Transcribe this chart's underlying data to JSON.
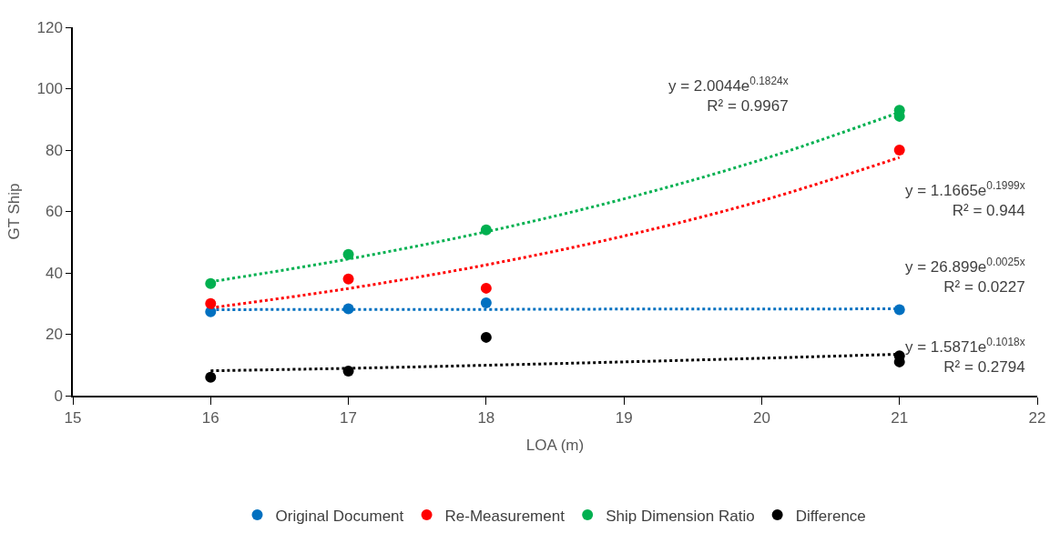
{
  "chart_data": {
    "type": "scatter",
    "xlabel": "LOA (m)",
    "ylabel": "GT Ship",
    "xlim": [
      15,
      22
    ],
    "xticks": [
      15,
      16,
      17,
      18,
      19,
      20,
      21,
      22
    ],
    "ylim": [
      0,
      120
    ],
    "yticks": [
      0,
      20,
      40,
      60,
      80,
      100,
      120
    ],
    "legend": "bottom",
    "marker": "circle",
    "series": [
      {
        "name": "Original Document",
        "color": "#0070c0",
        "x": [
          16,
          17,
          18,
          21
        ],
        "values": [
          27.3,
          28.3,
          30.2,
          28
        ]
      },
      {
        "name": "Re-Measurement",
        "color": "#ff0000",
        "x": [
          16,
          17,
          18,
          21
        ],
        "values": [
          30,
          38,
          35,
          80
        ]
      },
      {
        "name": "Ship Dimension Ratio",
        "color": "#00b050",
        "x": [
          16,
          17,
          18,
          21,
          21
        ],
        "values": [
          36.5,
          46,
          54,
          93,
          91
        ]
      },
      {
        "name": "Difference",
        "color": "#000000",
        "x": [
          16,
          17,
          18,
          21,
          21
        ],
        "values": [
          6,
          8,
          19,
          13,
          11
        ]
      },
      {
        "type": "line",
        "marker": "none",
        "line_style": "dotted",
        "color": "#0070c0",
        "x": [
          16,
          17,
          18,
          19,
          20,
          21
        ],
        "values": [
          28.0,
          28.1,
          28.1,
          28.2,
          28.2,
          28.3
        ]
      },
      {
        "type": "line",
        "marker": "none",
        "line_style": "dotted",
        "color": "#ff0000",
        "x": [
          16,
          17,
          18,
          19,
          20,
          21
        ],
        "values": [
          28.6,
          34.9,
          42.6,
          52.0,
          63.5,
          77.6
        ]
      },
      {
        "type": "line",
        "marker": "none",
        "line_style": "dotted",
        "color": "#00b050",
        "x": [
          16,
          17,
          18,
          19,
          20,
          21
        ],
        "values": [
          37.1,
          44.5,
          53.4,
          64.1,
          76.9,
          92.3
        ]
      },
      {
        "type": "line",
        "marker": "none",
        "line_style": "dotted",
        "color": "#000000",
        "x": [
          16,
          17,
          18,
          19,
          20,
          21
        ],
        "values": [
          8.1,
          8.9,
          9.9,
          11.0,
          12.2,
          13.5
        ]
      }
    ],
    "annotations": [
      "y = 2.0044e$^{0.1824x}$\nR² = 0.9967",
      "y = 1.1665e$^{0.1999x}$\nR² = 0.944",
      "y = 26.899e$^{0.0025x}$\nR² = 0.0227",
      "y = 1.5871e$^{0.1018x}$\nR² = 0.2794"
    ]
  }
}
